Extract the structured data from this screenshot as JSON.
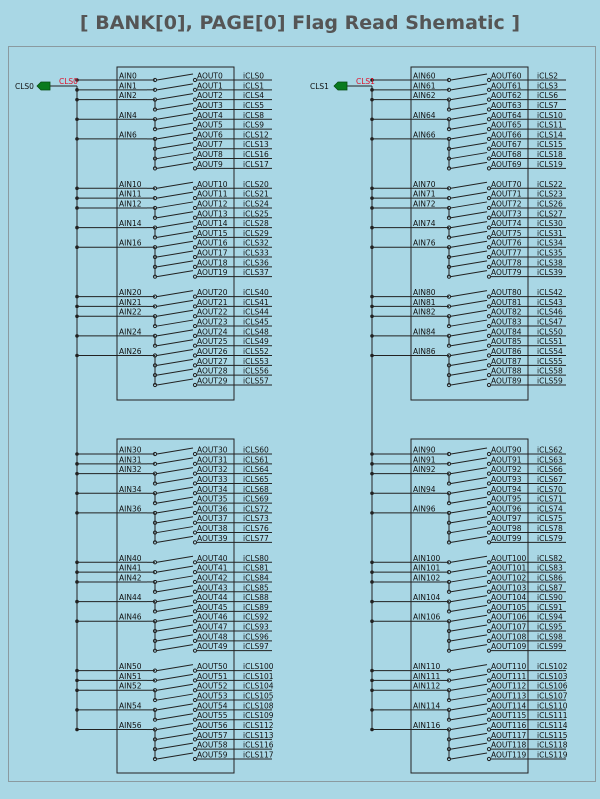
{
  "title": "[ BANK[0], PAGE[0] Flag Read Shematic ]",
  "colors": {
    "background": "#a9d7e5",
    "line": "#222222",
    "flag": "#0a7a1e",
    "flag_label": "#e0102a",
    "text": "#111111"
  },
  "flags": [
    {
      "label": "CLS0",
      "name": "CLS0"
    },
    {
      "label": "CLS1",
      "name": "CLS1"
    }
  ],
  "blocks": [
    {
      "rows": [
        {
          "ain": "AIN0",
          "aout": "AOUT0",
          "icls": "iCLS0"
        },
        {
          "ain": "AIN1",
          "aout": "AOUT1",
          "icls": "iCLS1"
        },
        {
          "ain": "AIN2",
          "aout": "AOUT2",
          "icls": "iCLS4"
        },
        {
          "ain": "",
          "aout": "AOUT3",
          "icls": "iCLS5"
        },
        {
          "ain": "AIN4",
          "aout": "AOUT4",
          "icls": "iCLS8"
        },
        {
          "ain": "",
          "aout": "AOUT5",
          "icls": "iCLS9"
        },
        {
          "ain": "AIN6",
          "aout": "AOUT6",
          "icls": "iCLS12"
        },
        {
          "ain": "",
          "aout": "AOUT7",
          "icls": "iCLS13"
        },
        {
          "ain": "",
          "aout": "AOUT8",
          "icls": "iCLS16"
        },
        {
          "ain": "",
          "aout": "AOUT9",
          "icls": "iCLS17"
        },
        {
          "ain": "AIN10",
          "aout": "AOUT10",
          "icls": "iCLS20"
        },
        {
          "ain": "AIN11",
          "aout": "AOUT11",
          "icls": "iCLS21"
        },
        {
          "ain": "AIN12",
          "aout": "AOUT12",
          "icls": "iCLS24"
        },
        {
          "ain": "",
          "aout": "AOUT13",
          "icls": "iCLS25"
        },
        {
          "ain": "AIN14",
          "aout": "AOUT14",
          "icls": "iCLS28"
        },
        {
          "ain": "",
          "aout": "AOUT15",
          "icls": "iCLS29"
        },
        {
          "ain": "AIN16",
          "aout": "AOUT16",
          "icls": "iCLS32"
        },
        {
          "ain": "",
          "aout": "AOUT17",
          "icls": "iCLS33"
        },
        {
          "ain": "",
          "aout": "AOUT18",
          "icls": "iCLS36"
        },
        {
          "ain": "",
          "aout": "AOUT19",
          "icls": "iCLS37"
        },
        {
          "ain": "AIN20",
          "aout": "AOUT20",
          "icls": "iCLS40"
        },
        {
          "ain": "AIN21",
          "aout": "AOUT21",
          "icls": "iCLS41"
        },
        {
          "ain": "AIN22",
          "aout": "AOUT22",
          "icls": "iCLS44"
        },
        {
          "ain": "",
          "aout": "AOUT23",
          "icls": "iCLS45"
        },
        {
          "ain": "AIN24",
          "aout": "AOUT24",
          "icls": "iCLS48"
        },
        {
          "ain": "",
          "aout": "AOUT25",
          "icls": "iCLS49"
        },
        {
          "ain": "AIN26",
          "aout": "AOUT26",
          "icls": "iCLS52"
        },
        {
          "ain": "",
          "aout": "AOUT27",
          "icls": "iCLS53"
        },
        {
          "ain": "",
          "aout": "AOUT28",
          "icls": "iCLS56"
        },
        {
          "ain": "",
          "aout": "AOUT29",
          "icls": "iCLS57"
        }
      ]
    },
    {
      "rows": [
        {
          "ain": "AIN30",
          "aout": "AOUT30",
          "icls": "iCLS60"
        },
        {
          "ain": "AIN31",
          "aout": "AOUT31",
          "icls": "iCLS61"
        },
        {
          "ain": "AIN32",
          "aout": "AOUT32",
          "icls": "iCLS64"
        },
        {
          "ain": "",
          "aout": "AOUT33",
          "icls": "iCLS65"
        },
        {
          "ain": "AIN34",
          "aout": "AOUT34",
          "icls": "iCLS68"
        },
        {
          "ain": "",
          "aout": "AOUT35",
          "icls": "iCLS69"
        },
        {
          "ain": "AIN36",
          "aout": "AOUT36",
          "icls": "iCLS72"
        },
        {
          "ain": "",
          "aout": "AOUT37",
          "icls": "iCLS73"
        },
        {
          "ain": "",
          "aout": "AOUT38",
          "icls": "iCLS76"
        },
        {
          "ain": "",
          "aout": "AOUT39",
          "icls": "iCLS77"
        },
        {
          "ain": "AIN40",
          "aout": "AOUT40",
          "icls": "iCLS80"
        },
        {
          "ain": "AIN41",
          "aout": "AOUT41",
          "icls": "iCLS81"
        },
        {
          "ain": "AIN42",
          "aout": "AOUT42",
          "icls": "iCLS84"
        },
        {
          "ain": "",
          "aout": "AOUT43",
          "icls": "iCLS85"
        },
        {
          "ain": "AIN44",
          "aout": "AOUT44",
          "icls": "iCLS88"
        },
        {
          "ain": "",
          "aout": "AOUT45",
          "icls": "iCLS89"
        },
        {
          "ain": "AIN46",
          "aout": "AOUT46",
          "icls": "iCLS92"
        },
        {
          "ain": "",
          "aout": "AOUT47",
          "icls": "iCLS93"
        },
        {
          "ain": "",
          "aout": "AOUT48",
          "icls": "iCLS96"
        },
        {
          "ain": "",
          "aout": "AOUT49",
          "icls": "iCLS97"
        },
        {
          "ain": "AIN50",
          "aout": "AOUT50",
          "icls": "iCLS100"
        },
        {
          "ain": "AIN51",
          "aout": "AOUT51",
          "icls": "iCLS101"
        },
        {
          "ain": "AIN52",
          "aout": "AOUT52",
          "icls": "iCLS104"
        },
        {
          "ain": "",
          "aout": "AOUT53",
          "icls": "iCLS105"
        },
        {
          "ain": "AIN54",
          "aout": "AOUT54",
          "icls": "iCLS108"
        },
        {
          "ain": "",
          "aout": "AOUT55",
          "icls": "iCLS109"
        },
        {
          "ain": "AIN56",
          "aout": "AOUT56",
          "icls": "iCLS112"
        },
        {
          "ain": "",
          "aout": "AOUT57",
          "icls": "iCLS113"
        },
        {
          "ain": "",
          "aout": "AOUT58",
          "icls": "iCLS116"
        },
        {
          "ain": "",
          "aout": "AOUT59",
          "icls": "iCLS117"
        }
      ]
    },
    {
      "rows": [
        {
          "ain": "AIN60",
          "aout": "AOUT60",
          "icls": "iCLS2"
        },
        {
          "ain": "AIN61",
          "aout": "AOUT61",
          "icls": "iCLS3"
        },
        {
          "ain": "AIN62",
          "aout": "AOUT62",
          "icls": "iCLS6"
        },
        {
          "ain": "",
          "aout": "AOUT63",
          "icls": "iCLS7"
        },
        {
          "ain": "AIN64",
          "aout": "AOUT64",
          "icls": "iCLS10"
        },
        {
          "ain": "",
          "aout": "AOUT65",
          "icls": "iCLS11"
        },
        {
          "ain": "AIN66",
          "aout": "AOUT66",
          "icls": "iCLS14"
        },
        {
          "ain": "",
          "aout": "AOUT67",
          "icls": "iCLS15"
        },
        {
          "ain": "",
          "aout": "AOUT68",
          "icls": "iCLS18"
        },
        {
          "ain": "",
          "aout": "AOUT69",
          "icls": "iCLS19"
        },
        {
          "ain": "AIN70",
          "aout": "AOUT70",
          "icls": "iCLS22"
        },
        {
          "ain": "AIN71",
          "aout": "AOUT71",
          "icls": "iCLS23"
        },
        {
          "ain": "AIN72",
          "aout": "AOUT72",
          "icls": "iCLS26"
        },
        {
          "ain": "",
          "aout": "AOUT73",
          "icls": "iCLS27"
        },
        {
          "ain": "AIN74",
          "aout": "AOUT74",
          "icls": "iCLS30"
        },
        {
          "ain": "",
          "aout": "AOUT75",
          "icls": "iCLS31"
        },
        {
          "ain": "AIN76",
          "aout": "AOUT76",
          "icls": "iCLS34"
        },
        {
          "ain": "",
          "aout": "AOUT77",
          "icls": "iCLS35"
        },
        {
          "ain": "",
          "aout": "AOUT78",
          "icls": "iCLS38"
        },
        {
          "ain": "",
          "aout": "AOUT79",
          "icls": "iCLS39"
        },
        {
          "ain": "AIN80",
          "aout": "AOUT80",
          "icls": "iCLS42"
        },
        {
          "ain": "AIN81",
          "aout": "AOUT81",
          "icls": "iCLS43"
        },
        {
          "ain": "AIN82",
          "aout": "AOUT82",
          "icls": "iCLS46"
        },
        {
          "ain": "",
          "aout": "AOUT83",
          "icls": "iCLS47"
        },
        {
          "ain": "AIN84",
          "aout": "AOUT84",
          "icls": "iCLS50"
        },
        {
          "ain": "",
          "aout": "AOUT85",
          "icls": "iCLS51"
        },
        {
          "ain": "AIN86",
          "aout": "AOUT86",
          "icls": "iCLS54"
        },
        {
          "ain": "",
          "aout": "AOUT87",
          "icls": "iCLS55"
        },
        {
          "ain": "",
          "aout": "AOUT88",
          "icls": "iCLS58"
        },
        {
          "ain": "",
          "aout": "AOUT89",
          "icls": "iCLS59"
        }
      ]
    },
    {
      "rows": [
        {
          "ain": "AIN90",
          "aout": "AOUT90",
          "icls": "iCLS62"
        },
        {
          "ain": "AIN91",
          "aout": "AOUT91",
          "icls": "iCLS63"
        },
        {
          "ain": "AIN92",
          "aout": "AOUT92",
          "icls": "iCLS66"
        },
        {
          "ain": "",
          "aout": "AOUT93",
          "icls": "iCLS67"
        },
        {
          "ain": "AIN94",
          "aout": "AOUT94",
          "icls": "iCLS70"
        },
        {
          "ain": "",
          "aout": "AOUT95",
          "icls": "iCLS71"
        },
        {
          "ain": "AIN96",
          "aout": "AOUT96",
          "icls": "iCLS74"
        },
        {
          "ain": "",
          "aout": "AOUT97",
          "icls": "iCLS75"
        },
        {
          "ain": "",
          "aout": "AOUT98",
          "icls": "iCLS78"
        },
        {
          "ain": "",
          "aout": "AOUT99",
          "icls": "iCLS79"
        },
        {
          "ain": "AIN100",
          "aout": "AOUT100",
          "icls": "iCLS82"
        },
        {
          "ain": "AIN101",
          "aout": "AOUT101",
          "icls": "iCLS83"
        },
        {
          "ain": "AIN102",
          "aout": "AOUT102",
          "icls": "iCLS86"
        },
        {
          "ain": "",
          "aout": "AOUT103",
          "icls": "iCLS87"
        },
        {
          "ain": "AIN104",
          "aout": "AOUT104",
          "icls": "iCLS90"
        },
        {
          "ain": "",
          "aout": "AOUT105",
          "icls": "iCLS91"
        },
        {
          "ain": "AIN106",
          "aout": "AOUT106",
          "icls": "iCLS94"
        },
        {
          "ain": "",
          "aout": "AOUT107",
          "icls": "iCLS95"
        },
        {
          "ain": "",
          "aout": "AOUT108",
          "icls": "iCLS98"
        },
        {
          "ain": "",
          "aout": "AOUT109",
          "icls": "iCLS99"
        },
        {
          "ain": "AIN110",
          "aout": "AOUT110",
          "icls": "iCLS102"
        },
        {
          "ain": "AIN111",
          "aout": "AOUT111",
          "icls": "iCLS103"
        },
        {
          "ain": "AIN112",
          "aout": "AOUT112",
          "icls": "iCLS106"
        },
        {
          "ain": "",
          "aout": "AOUT113",
          "icls": "iCLS107"
        },
        {
          "ain": "AIN114",
          "aout": "AOUT114",
          "icls": "iCLS110"
        },
        {
          "ain": "",
          "aout": "AOUT115",
          "icls": "iCLS111"
        },
        {
          "ain": "AIN116",
          "aout": "AOUT116",
          "icls": "iCLS114"
        },
        {
          "ain": "",
          "aout": "AOUT117",
          "icls": "iCLS115"
        },
        {
          "ain": "",
          "aout": "AOUT118",
          "icls": "iCLS118"
        },
        {
          "ain": "",
          "aout": "AOUT119",
          "icls": "iCLS119"
        }
      ]
    }
  ]
}
